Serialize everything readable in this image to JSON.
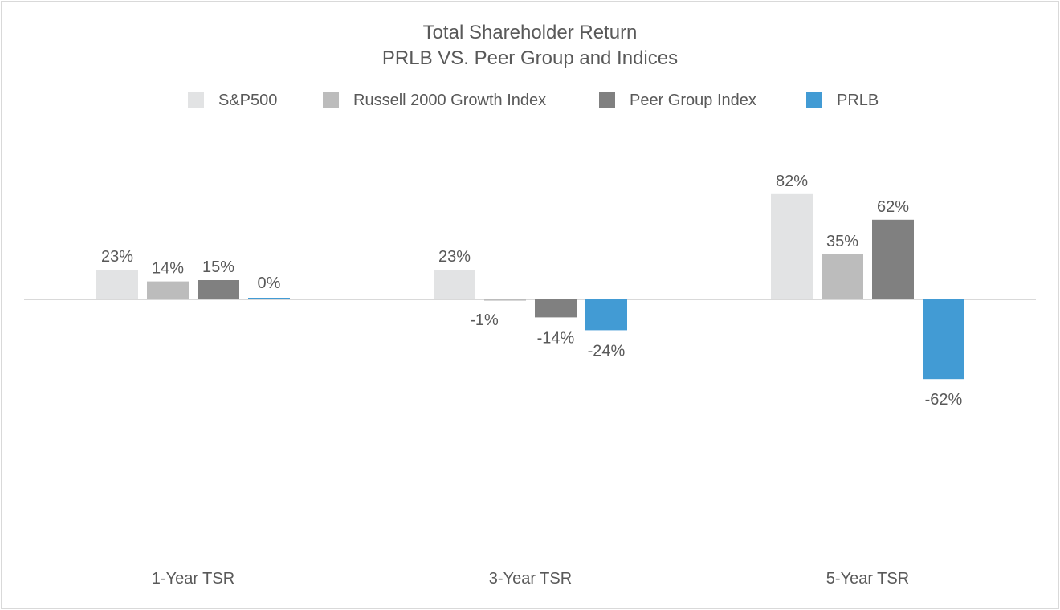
{
  "chart_data": {
    "type": "bar",
    "title": "Total Shareholder Return",
    "subtitle": "PRLB VS. Peer Group and Indices",
    "categories": [
      "1-Year TSR",
      "3-Year TSR",
      "5-Year TSR"
    ],
    "series": [
      {
        "name": "S&P500",
        "color": "#e2e3e4",
        "values": [
          23,
          23,
          82
        ],
        "labels": [
          "23%",
          "23%",
          "82%"
        ]
      },
      {
        "name": "Russell 2000 Growth Index",
        "color": "#bcbcbc",
        "values": [
          14,
          -1,
          35
        ],
        "labels": [
          "14%",
          "-1%",
          "35%"
        ]
      },
      {
        "name": "Peer Group Index",
        "color": "#808080",
        "values": [
          15,
          -14,
          62
        ],
        "labels": [
          "15%",
          "-14%",
          "62%"
        ]
      },
      {
        "name": "PRLB",
        "color": "#429bd4",
        "values": [
          0,
          -24,
          -62
        ],
        "labels": [
          "0%",
          "-24%",
          "-62%"
        ]
      }
    ],
    "legend_position": "top",
    "gridlines": false,
    "xlabel": "",
    "ylabel": "",
    "ylim": [
      -62,
      82
    ]
  }
}
